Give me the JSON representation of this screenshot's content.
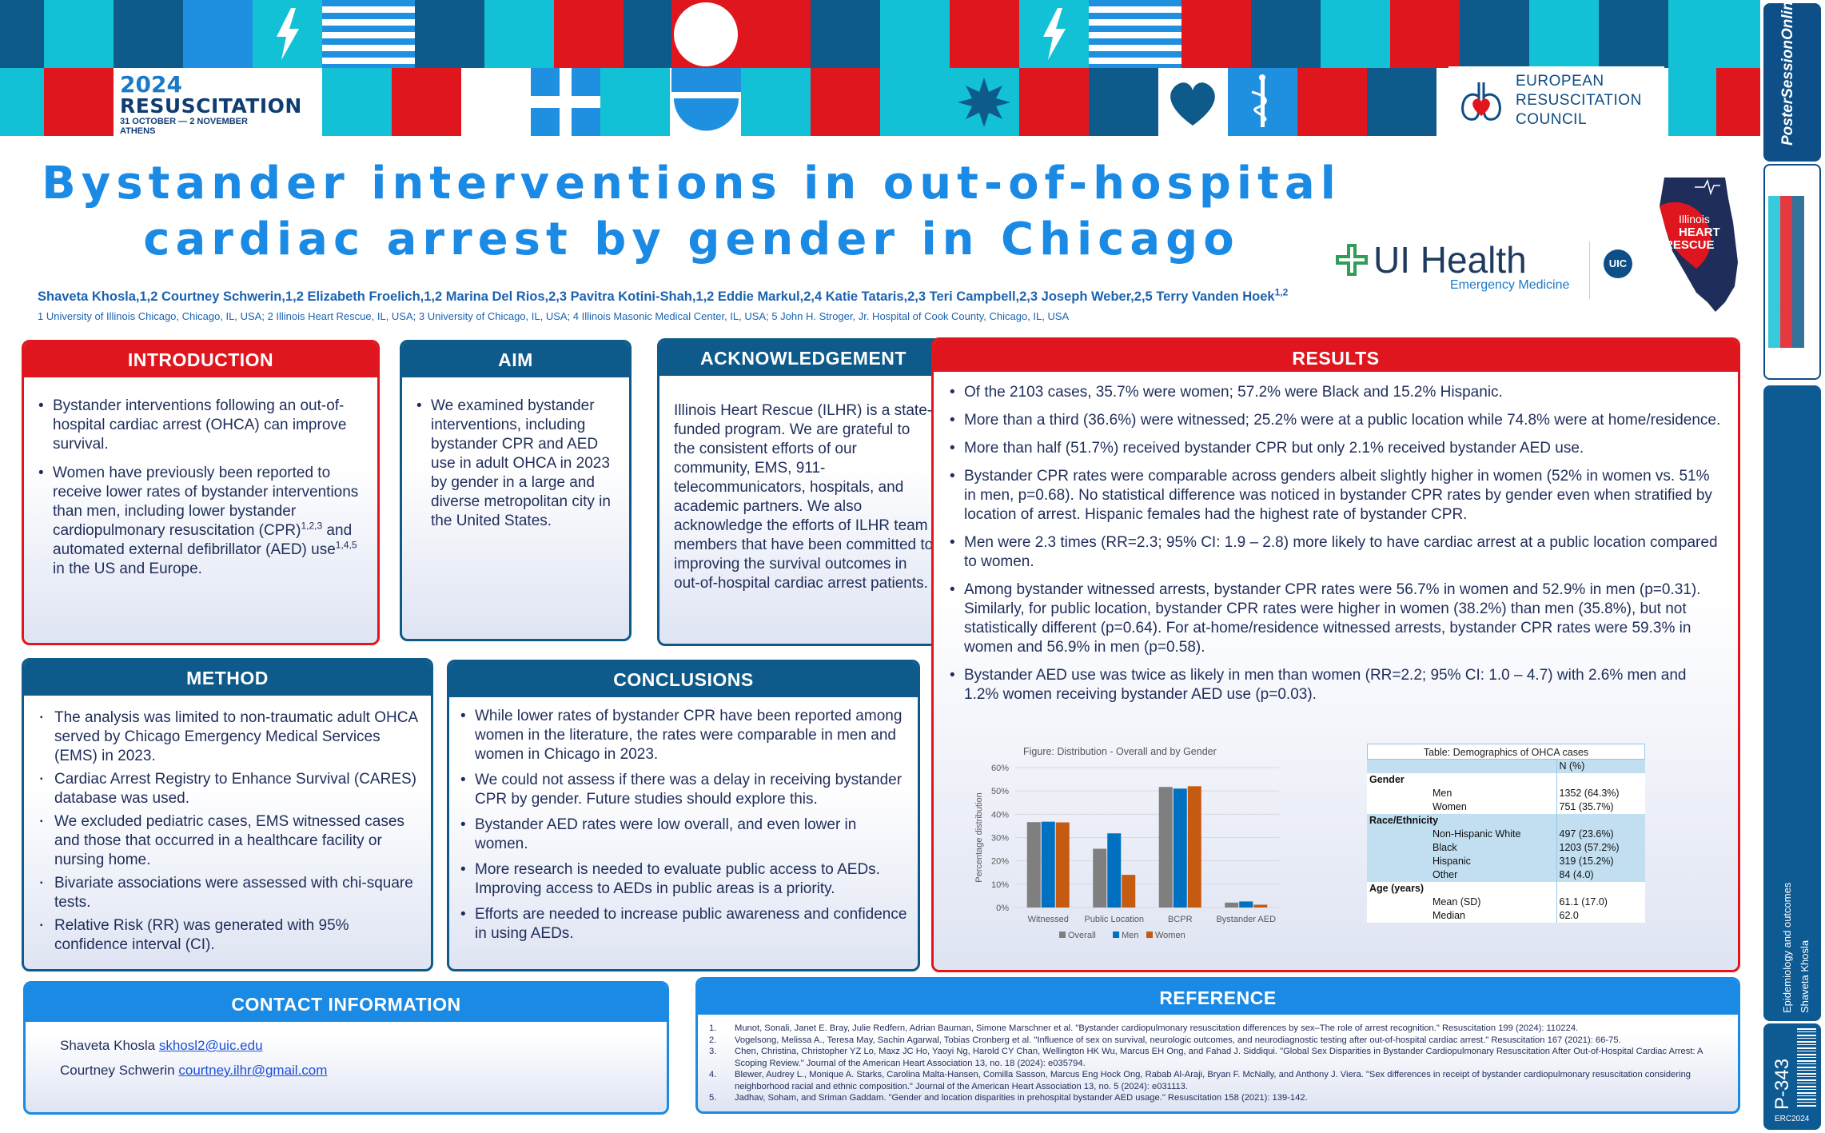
{
  "conference": {
    "year": "2024",
    "name": "RESUSCITATION",
    "dates": "31 OCTOBER — 2 NOVEMBER",
    "city": "ATHENS"
  },
  "erc_logo": {
    "line1": "EUROPEAN",
    "line2": "RESUSCITATION",
    "line3": "COUNCIL"
  },
  "title": {
    "line1": "Bystander interventions in out-of-hospital",
    "line2": "cardiac arrest by gender in Chicago"
  },
  "authors": "Shaveta Khosla,1,2 Courtney Schwerin,1,2 Elizabeth Froelich,1,2 Marina Del Rios,2,3 Pavitra Kotini-Shah,1,2 Eddie Markul,2,4 Katie Tataris,2,3 Teri Campbell,2,3 Joseph Weber,2,5 Terry Vanden Hoek1,2",
  "affiliations": "1 University of Illinois Chicago, Chicago, IL, USA; 2 Illinois Heart Rescue, IL, USA; 3 University of Chicago, IL, USA; 4 Illinois Masonic Medical Center, IL, USA; 5 John H. Stroger, Jr. Hospital of Cook County, Chicago, IL, USA",
  "logos": {
    "ui_health": "UI Health",
    "ui_health_sub": "Emergency Medicine",
    "uic": "UIC",
    "ihr_line1": "Illinois",
    "ihr_line2": "HEART",
    "ihr_line3": "RESCUE"
  },
  "introduction": {
    "heading": "INTRODUCTION",
    "bullet1": "Bystander interventions following an out-of-hospital cardiac arrest (OHCA) can improve survival.",
    "bullet2_a": "Women have previously been reported to receive lower rates of bystander interventions than men, including lower bystander cardiopulmonary resuscitation (CPR)",
    "bullet2_sup1": "1,2,3",
    "bullet2_b": " and automated external defibrillator (AED) use",
    "bullet2_sup2": "1,4,5",
    "bullet2_c": " in the US and Europe."
  },
  "aim": {
    "heading": "AIM",
    "bullet1": "We examined bystander interventions, including bystander CPR and AED use in adult OHCA in 2023 by gender in a large and diverse metropolitan city in the United States."
  },
  "acknowledgement": {
    "heading": "ACKNOWLEDGEMENT",
    "text": "Illinois Heart Rescue (ILHR) is a state-funded program. We are grateful to the consistent efforts of our community, EMS, 911-telecommunicators, hospitals, and academic partners. We also acknowledge the efforts of ILHR team members that have been committed to improving the survival outcomes in out-of-hospital cardiac arrest patients."
  },
  "method": {
    "heading": "METHOD",
    "bullets": [
      "The analysis was limited to non-traumatic adult OHCA served by Chicago Emergency Medical Services (EMS) in 2023.",
      "Cardiac Arrest Registry to Enhance Survival (CARES) database was used.",
      "We excluded pediatric cases, EMS witnessed cases and those that occurred in a healthcare facility or nursing home.",
      "Bivariate associations were assessed with chi-square tests.",
      "Relative Risk (RR) was generated with 95% confidence interval (CI)."
    ]
  },
  "conclusions": {
    "heading": "CONCLUSIONS",
    "bullets": [
      "While lower rates of bystander CPR have been reported among women in the literature, the rates were comparable in men and women in Chicago in 2023.",
      "We could not assess if there was a delay in receiving bystander CPR by gender. Future studies should explore this.",
      "Bystander AED rates were low overall, and even lower in women.",
      "More research is needed to evaluate public access to AEDs. Improving access to AEDs in public areas is a priority.",
      "Efforts are needed to increase public awareness and confidence in using AEDs."
    ]
  },
  "results": {
    "heading": "RESULTS",
    "bullets": [
      "Of the 2103 cases, 35.7% were women; 57.2% were Black and 15.2% Hispanic.",
      "More than a third (36.6%) were witnessed; 25.2% were at a public location while 74.8% were at home/residence.",
      "More than half (51.7%) received bystander CPR but only 2.1% received bystander AED use.",
      "Bystander CPR rates were comparable across genders albeit slightly higher in women (52% in women vs. 51% in men, p=0.68). No statistical difference was noticed in bystander CPR rates by gender even when stratified by location of arrest. Hispanic females had the highest rate of bystander CPR.",
      "Men were 2.3 times (RR=2.3; 95% CI: 1.9 – 2.8) more likely to have cardiac arrest at a public location compared to women.",
      "Among bystander witnessed arrests, bystander CPR rates were 56.7% in women and 52.9% in men (p=0.31). Similarly, for public location, bystander CPR rates were higher in women (38.2%) than men (35.8%), but not statistically different (p=0.64). For at-home/residence witnessed arrests, bystander CPR rates were 59.3% in women and 56.9% in men (p=0.58).",
      "Bystander AED use was twice as likely in men than women (RR=2.2; 95% CI: 1.0 – 4.7) with 2.6% men and 1.2% women receiving bystander AED use (p=0.03)."
    ]
  },
  "chart_data": {
    "type": "bar",
    "title": "Figure: Distribution - Overall and by Gender",
    "xlabel": "",
    "ylabel": "Percentage distribution",
    "ylim": [
      0,
      60
    ],
    "yticks": [
      "0%",
      "10%",
      "20%",
      "30%",
      "40%",
      "50%",
      "60%"
    ],
    "grid": true,
    "legend": "bottom",
    "categories": [
      "Witnessed",
      "Public Location",
      "BCPR",
      "Bystander AED"
    ],
    "series": [
      {
        "name": "Overall",
        "color": "#7f7f7f",
        "values": [
          36.6,
          25.2,
          51.7,
          2.1
        ]
      },
      {
        "name": "Men",
        "color": "#0070c0",
        "values": [
          36.8,
          31.8,
          51.0,
          2.6
        ]
      },
      {
        "name": "Women",
        "color": "#c55a11",
        "values": [
          36.5,
          14.0,
          52.0,
          1.2
        ]
      }
    ]
  },
  "demographics_table": {
    "title": "Table: Demographics of OHCA cases",
    "col_header": "N (%)",
    "groups": [
      {
        "name": "Gender",
        "rows": [
          {
            "label": "Men",
            "value": "1352 (64.3%)"
          },
          {
            "label": "Women",
            "value": "751 (35.7%)"
          }
        ]
      },
      {
        "name": "Race/Ethnicity",
        "rows": [
          {
            "label": "Non-Hispanic White",
            "value": "497 (23.6%)"
          },
          {
            "label": "Black",
            "value": "1203 (57.2%)"
          },
          {
            "label": "Hispanic",
            "value": "319 (15.2%)"
          },
          {
            "label": "Other",
            "value": "84 (4.0)"
          }
        ]
      },
      {
        "name": "Age (years)",
        "rows": [
          {
            "label": "Mean (SD)",
            "value": "61.1 (17.0)"
          },
          {
            "label": "Median",
            "value": "62.0"
          }
        ]
      }
    ]
  },
  "contact": {
    "heading": "CONTACT INFORMATION",
    "person1": "Shaveta Khosla",
    "email1": "skhosl2@uic.edu",
    "person2": "Courtney Schwerin",
    "email2": "courtney.ilhr@gmail.com"
  },
  "reference": {
    "heading": "REFERENCE",
    "items": [
      {
        "num": "1.",
        "text": "Munot, Sonali, Janet E. Bray, Julie Redfern, Adrian Bauman, Simone Marschner et al. \"Bystander cardiopulmonary resuscitation differences by sex–The role of arrest recognition.\" Resuscitation 199 (2024): 110224."
      },
      {
        "num": "2.",
        "text": "Vogelsong, Melissa A., Teresa May, Sachin Agarwal, Tobias Cronberg et al. \"Influence of sex on survival, neurologic outcomes, and neurodiagnostic testing after out-of-hospital cardiac arrest.\" Resuscitation 167 (2021): 66-75."
      },
      {
        "num": "3.",
        "text": "Chen, Christina, Christopher YZ Lo, Maxz JC Ho, Yaoyi Ng, Harold CY Chan, Wellington HK Wu, Marcus EH Ong, and Fahad J. Siddiqui. \"Global Sex Disparities in Bystander Cardiopulmonary Resuscitation After Out-of-Hospital Cardiac Arrest: A Scoping Review.\" Journal of the American Heart Association 13, no. 18 (2024): e035794."
      },
      {
        "num": "4.",
        "text": "Blewer, Audrey L., Monique A. Starks, Carolina Malta-Hansen, Comilla Sasson, Marcus Eng Hock Ong, Rabab Al-Araji, Bryan F. McNally, and Anthony J. Viera. \"Sex differences in receipt of bystander cardiopulmonary resuscitation considering neighborhood racial and ethnic composition.\" Journal of the American Heart Association 13, no. 5 (2024): e031113."
      },
      {
        "num": "5.",
        "text": "Jadhav, Soham, and Sriman Gaddam. \"Gender and location disparities in prehospital bystander AED usage.\" Resuscitation 158 (2021): 139-142."
      }
    ]
  },
  "rail": {
    "brand": "PosterSessionOnline",
    "topic": "Epidemiology and outcomes",
    "presenter": "Shaveta Khosla",
    "poster_id": "P-343",
    "event_code": "ERC2024"
  },
  "colors": {
    "red": "#e0161e",
    "navy": "#0e5a8a",
    "sky": "#1a8ae5",
    "teal": "#12c1d6"
  }
}
